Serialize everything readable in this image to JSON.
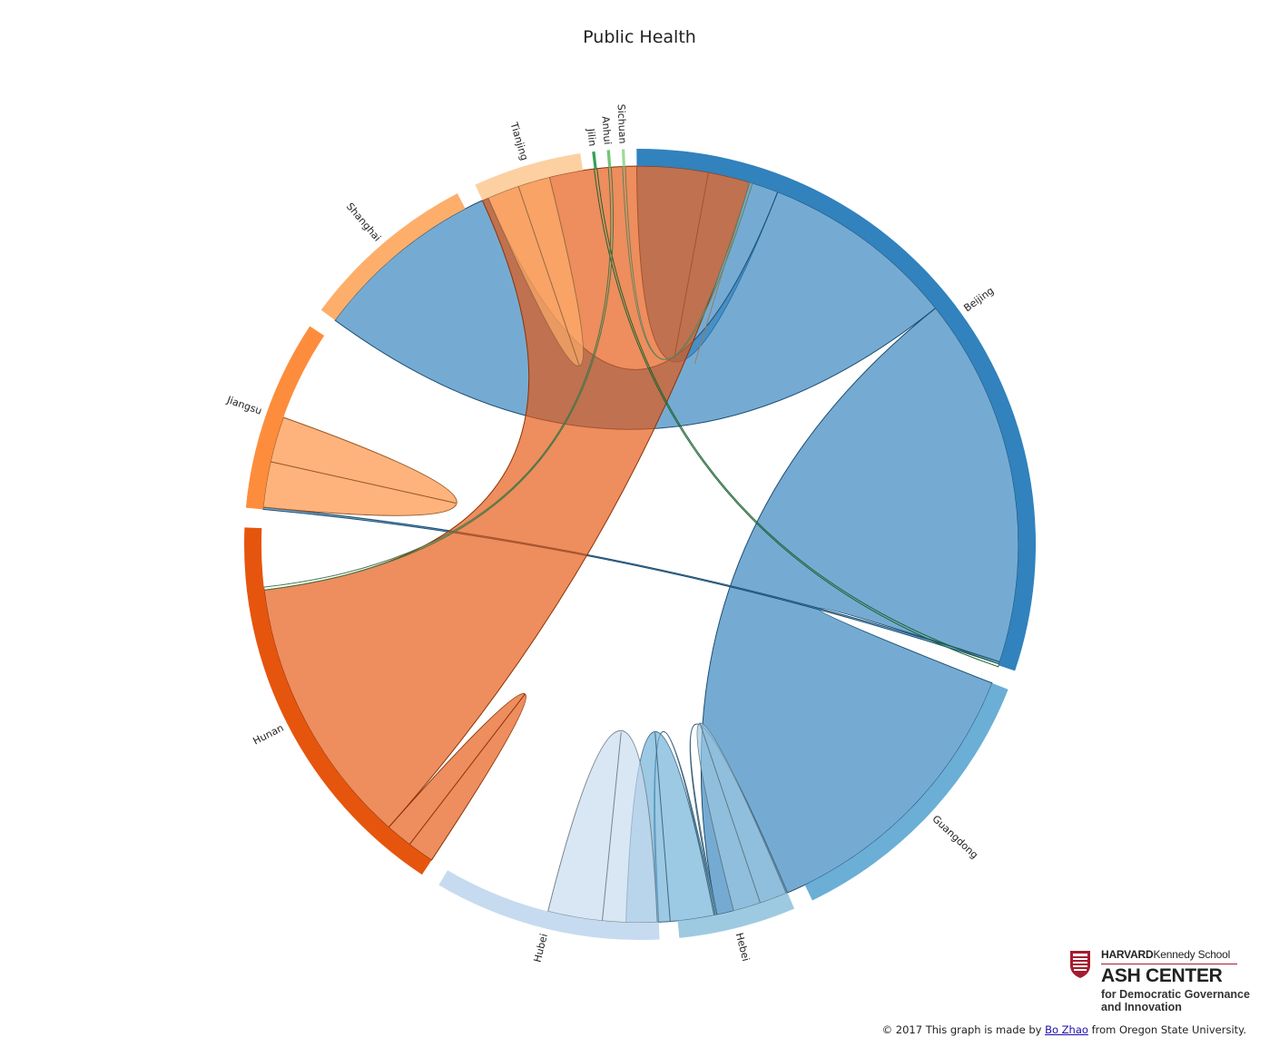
{
  "title": "Public Health",
  "chart_data": {
    "type": "chord",
    "title": "Public Health",
    "groups": [
      {
        "name": "Beijing",
        "color": "#3182bd",
        "value": 1.0
      },
      {
        "name": "Guangdong",
        "color": "#6baed6",
        "value": 0.391
      },
      {
        "name": "Hebei",
        "color": "#9ecae1",
        "value": 0.158
      },
      {
        "name": "Hubei",
        "color": "#c6dbef",
        "value": 0.306
      },
      {
        "name": "Hunan",
        "color": "#e6550d",
        "value": 0.541
      },
      {
        "name": "Jiangsu",
        "color": "#fd8d3c",
        "value": 0.258
      },
      {
        "name": "Shanghai",
        "color": "#fdae6b",
        "value": 0.24
      },
      {
        "name": "Tianjing",
        "color": "#fdd0a2",
        "value": 0.146
      },
      {
        "name": "Jilin",
        "color": "#31a354",
        "value": 0.004
      },
      {
        "name": "Anhui",
        "color": "#74c476",
        "value": 0.004
      },
      {
        "name": "Sichuan",
        "color": "#a1d99b",
        "value": 0.004
      }
    ],
    "links": [
      {
        "source": "Beijing",
        "target": "Beijing",
        "value": 0.2
      },
      {
        "source": "Beijing",
        "target": "Shanghai",
        "value": 0.275
      },
      {
        "source": "Beijing",
        "target": "Guangdong",
        "value": 0.52
      },
      {
        "source": "Beijing",
        "target": "Jiangsu",
        "value": 0.003
      },
      {
        "source": "Guangdong",
        "target": "Hebei",
        "value": 0.002
      },
      {
        "source": "Guangdong",
        "target": "Hubei",
        "value": 0.002
      },
      {
        "source": "Guangdong",
        "target": "Guangdong",
        "value": 0.123
      },
      {
        "source": "Hebei",
        "target": "Hebei",
        "value": 0.077
      },
      {
        "source": "Hubei",
        "target": "Hubei",
        "value": 0.153
      },
      {
        "source": "Hunan",
        "target": "Hunan",
        "value": 0.075
      },
      {
        "source": "Hunan",
        "target": "Tianjing",
        "value": 0.38
      },
      {
        "source": "Jiangsu",
        "target": "Jiangsu",
        "value": 0.128
      },
      {
        "source": "Shanghai",
        "target": "Shanghai",
        "value": 0.09
      },
      {
        "source": "Tianjing",
        "target": "Tianjing",
        "value": 0.0
      },
      {
        "source": "Jilin",
        "target": "Beijing",
        "value": 0.004
      },
      {
        "source": "Anhui",
        "target": "Hunan",
        "value": 0.004
      },
      {
        "source": "Sichuan",
        "target": "Tianjing",
        "value": 0.004
      }
    ]
  },
  "logo": {
    "line1_bold": "HARVARD",
    "line1_rest": "Kennedy School",
    "name": "ASH CENTER",
    "sub1": "for Democratic Governance",
    "sub2": "and Innovation"
  },
  "credit": {
    "prefix": "© 2017 This graph is made by ",
    "link": "Bo Zhao",
    "suffix": " from Oregon State University."
  }
}
